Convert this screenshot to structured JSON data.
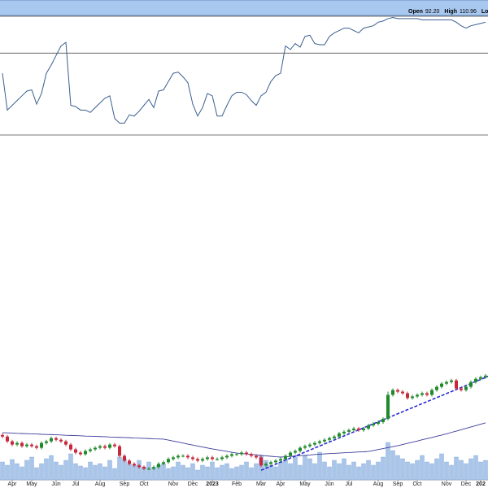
{
  "header": {
    "fields": [
      {
        "label": "Open",
        "value": "92.20"
      },
      {
        "label": "High",
        "value": "110.96"
      },
      {
        "label": "Lo"
      }
    ]
  },
  "chart_data": [
    {
      "type": "line",
      "color": "#3a5f8f",
      "ylim": [
        0,
        100
      ],
      "hline": 69,
      "values": [
        52,
        21,
        25,
        29,
        33,
        37,
        38,
        26,
        35,
        52,
        59,
        67,
        75,
        78,
        25,
        24,
        21,
        21,
        19,
        23,
        27,
        31,
        33,
        14,
        10,
        10,
        17,
        16,
        20,
        25,
        30,
        23,
        37,
        38,
        45,
        52,
        53,
        49,
        44,
        26,
        16,
        23,
        35,
        33,
        16,
        16,
        25,
        33,
        36,
        36,
        34,
        29,
        25,
        33,
        36,
        45,
        50,
        52,
        75,
        72,
        77,
        74,
        83,
        84,
        77,
        76,
        76,
        83,
        86,
        88,
        90,
        90,
        88,
        86,
        90,
        91,
        92,
        95,
        96,
        98,
        99,
        98,
        98,
        98,
        98,
        98,
        97,
        97,
        97,
        97,
        97,
        97,
        97,
        95,
        92,
        90,
        92,
        93,
        94,
        95
      ]
    },
    {
      "type": "candlestick",
      "up_color": "#1f8a2a",
      "down_color": "#c8283c",
      "ylim": [
        40,
        255
      ],
      "categories": [
        null,
        null,
        "Apr",
        null,
        null,
        null,
        "May",
        null,
        null,
        null,
        null,
        "Jun",
        null,
        null,
        null,
        "Jul",
        null,
        null,
        null,
        null,
        "Aug",
        null,
        null,
        null,
        null,
        "Sep",
        null,
        null,
        null,
        "Oct",
        null,
        null,
        null,
        null,
        null,
        "Nov",
        null,
        null,
        null,
        "Dec",
        null,
        null,
        null,
        "2023",
        null,
        null,
        null,
        null,
        "Feb",
        null,
        null,
        null,
        null,
        "Mar",
        null,
        null,
        null,
        "Apr",
        null,
        null,
        null,
        null,
        "May",
        null,
        null,
        null,
        null,
        "Jun",
        null,
        null,
        null,
        "Jul",
        null,
        null,
        null,
        null,
        null,
        "Aug",
        null,
        null,
        null,
        "Sep",
        null,
        null,
        null,
        "Oct",
        null,
        null,
        null,
        null,
        null,
        "Nov",
        null,
        null,
        null,
        "Dec",
        null,
        null,
        "202",
        null
      ],
      "open": [
        68,
        67,
        64,
        62,
        63,
        61,
        62,
        61,
        60,
        63,
        64,
        66,
        65,
        64,
        62,
        59,
        57,
        56,
        58,
        59,
        60,
        61,
        60,
        62,
        61,
        55,
        52,
        50,
        49,
        48,
        47,
        47,
        48,
        50,
        51,
        53,
        54,
        55,
        55,
        54,
        53,
        52,
        53,
        54,
        53,
        53,
        54,
        55,
        56,
        56,
        57,
        56,
        55,
        54,
        49,
        50,
        51,
        52,
        53,
        55,
        57,
        58,
        60,
        61,
        62,
        63,
        64,
        65,
        66,
        67,
        69,
        70,
        71,
        72,
        71,
        72,
        74,
        75,
        76,
        78,
        93,
        96,
        95,
        94,
        91,
        92,
        93,
        94,
        93,
        96,
        98,
        100,
        101,
        102,
        97,
        96,
        98,
        101,
        103,
        104
      ],
      "high": [
        69,
        68,
        65,
        64,
        64,
        63,
        63,
        62,
        64,
        65,
        67,
        67,
        66,
        65,
        63,
        60,
        58,
        59,
        60,
        61,
        62,
        62,
        63,
        63,
        62,
        56,
        53,
        51,
        50,
        49,
        48,
        49,
        51,
        52,
        54,
        55,
        56,
        56,
        56,
        55,
        54,
        54,
        55,
        55,
        54,
        55,
        56,
        57,
        57,
        58,
        58,
        57,
        56,
        55,
        51,
        52,
        53,
        54,
        56,
        58,
        59,
        61,
        62,
        63,
        64,
        65,
        66,
        67,
        68,
        70,
        71,
        72,
        73,
        73,
        73,
        75,
        76,
        77,
        79,
        95,
        97,
        97,
        96,
        95,
        93,
        94,
        95,
        95,
        97,
        99,
        101,
        102,
        103,
        103,
        98,
        99,
        102,
        104,
        105,
        106
      ],
      "low": [
        66,
        63,
        61,
        61,
        60,
        60,
        60,
        59,
        59,
        62,
        63,
        64,
        63,
        61,
        58,
        56,
        55,
        55,
        57,
        58,
        59,
        59,
        59,
        60,
        54,
        51,
        49,
        48,
        47,
        46,
        46,
        46,
        47,
        49,
        50,
        52,
        53,
        54,
        53,
        52,
        51,
        51,
        52,
        52,
        52,
        52,
        53,
        54,
        55,
        55,
        55,
        54,
        53,
        48,
        48,
        49,
        50,
        51,
        52,
        54,
        56,
        57,
        59,
        60,
        61,
        62,
        63,
        64,
        65,
        66,
        68,
        69,
        70,
        70,
        70,
        71,
        73,
        74,
        75,
        77,
        92,
        94,
        93,
        90,
        90,
        91,
        92,
        92,
        92,
        95,
        97,
        99,
        100,
        96,
        95,
        95,
        97,
        100,
        102,
        103
      ],
      "close": [
        67,
        64,
        62,
        63,
        61,
        62,
        61,
        60,
        63,
        64,
        66,
        65,
        64,
        62,
        59,
        57,
        56,
        58,
        59,
        60,
        61,
        60,
        62,
        61,
        55,
        52,
        50,
        49,
        48,
        47,
        47,
        48,
        50,
        51,
        53,
        54,
        55,
        55,
        54,
        53,
        52,
        53,
        54,
        53,
        53,
        54,
        55,
        56,
        56,
        57,
        56,
        55,
        54,
        49,
        50,
        51,
        52,
        53,
        55,
        57,
        58,
        60,
        61,
        62,
        63,
        64,
        65,
        66,
        67,
        69,
        70,
        71,
        72,
        71,
        72,
        74,
        75,
        76,
        78,
        93,
        96,
        95,
        94,
        91,
        92,
        93,
        94,
        93,
        96,
        98,
        100,
        101,
        102,
        97,
        96,
        98,
        101,
        103,
        104,
        105
      ],
      "volume": [
        22,
        18,
        25,
        20,
        16,
        24,
        28,
        15,
        20,
        26,
        30,
        22,
        18,
        24,
        32,
        20,
        17,
        15,
        22,
        18,
        20,
        16,
        24,
        14,
        28,
        26,
        20,
        18,
        24,
        16,
        22,
        15,
        18,
        20,
        14,
        16,
        22,
        18,
        15,
        20,
        12,
        18,
        16,
        22,
        15,
        18,
        20,
        14,
        16,
        18,
        22,
        15,
        20,
        30,
        24,
        18,
        16,
        22,
        26,
        20,
        28,
        18,
        30,
        26,
        20,
        34,
        22,
        16,
        24,
        20,
        26,
        18,
        22,
        16,
        20,
        24,
        18,
        22,
        28,
        46,
        36,
        30,
        26,
        22,
        20,
        24,
        30,
        22,
        20,
        26,
        32,
        22,
        18,
        28,
        24,
        20,
        26,
        30,
        22,
        24
      ],
      "volume_lim": [
        0,
        100
      ],
      "volume_color": "#a9c6ea",
      "ma": [
        69.4,
        69.3,
        69.2,
        69.0,
        68.9,
        68.8,
        68.7,
        68.6,
        68.4,
        68.3,
        68.2,
        68.1,
        68.0,
        67.8,
        67.7,
        67.6,
        67.5,
        67.3,
        67.2,
        67.1,
        67.0,
        66.9,
        66.7,
        66.6,
        66.5,
        66.4,
        66.3,
        66.1,
        66.0,
        65.9,
        65.8,
        65.6,
        65.5,
        65.4,
        64.8,
        64.2,
        63.6,
        63.0,
        62.3,
        61.7,
        61.1,
        60.5,
        59.9,
        59.3,
        58.8,
        58.3,
        57.8,
        57.2,
        56.7,
        56.4,
        56.2,
        55.9,
        55.6,
        55.3,
        55.0,
        54.7,
        54.4,
        54.2,
        54.4,
        54.6,
        54.9,
        55.1,
        55.3,
        55.5,
        55.8,
        56.0,
        56.2,
        56.4,
        56.5,
        56.7,
        56.9,
        57.0,
        57.2,
        57.4,
        57.5,
        57.7,
        58.3,
        58.9,
        59.5,
        60.1,
        60.7,
        61.3,
        62.0,
        62.8,
        63.5,
        64.2,
        65.0,
        65.7,
        66.4,
        67.2,
        67.9,
        68.7,
        69.6,
        70.4,
        71.3,
        72.1,
        73.0,
        73.8,
        74.7,
        75.5
      ],
      "ma_color": "#3b3b9a",
      "trendline": {
        "x": [
          53,
          99.5
        ],
        "y": [
          46,
          104.5
        ],
        "color": "#2c2cd6"
      }
    }
  ]
}
